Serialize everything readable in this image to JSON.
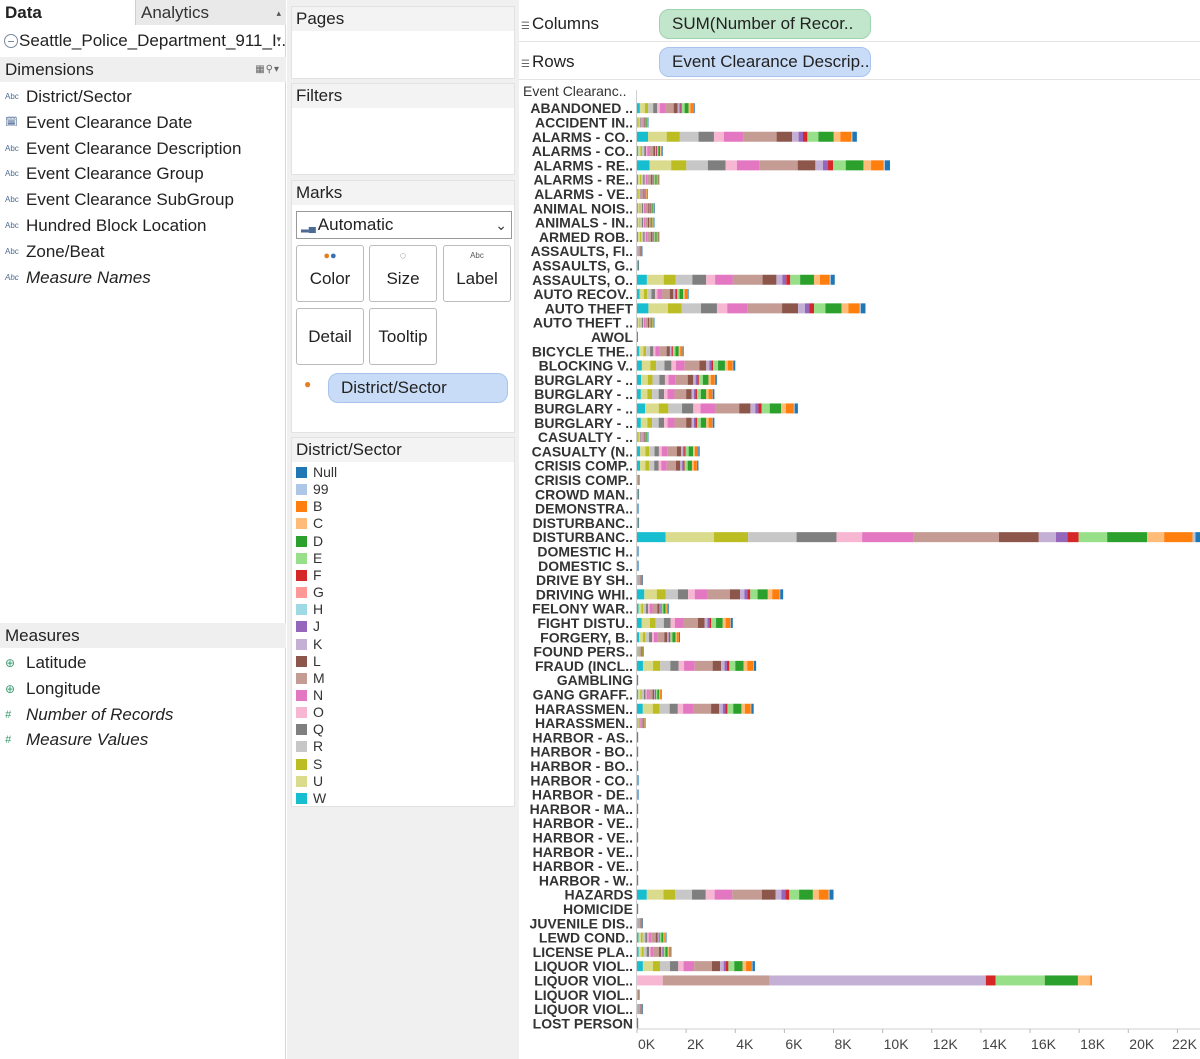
{
  "left_pane": {
    "tabs": {
      "data": "Data",
      "analytics": "Analytics"
    },
    "datasource": "Seattle_Police_Department_911_I...",
    "dimensions_header": "Dimensions",
    "dimensions": [
      {
        "type": "Abc",
        "label": "District/Sector",
        "italic": false
      },
      {
        "type": "date",
        "label": "Event Clearance Date",
        "italic": false
      },
      {
        "type": "Abc",
        "label": "Event Clearance Description",
        "italic": false
      },
      {
        "type": "Abc",
        "label": "Event Clearance Group",
        "italic": false
      },
      {
        "type": "Abc",
        "label": "Event Clearance SubGroup",
        "italic": false
      },
      {
        "type": "Abc",
        "label": "Hundred Block Location",
        "italic": false
      },
      {
        "type": "Abc",
        "label": "Zone/Beat",
        "italic": false
      },
      {
        "type": "Abc",
        "label": "Measure Names",
        "italic": true
      }
    ],
    "measures_header": "Measures",
    "measures": [
      {
        "type": "geo",
        "label": "Latitude",
        "italic": false
      },
      {
        "type": "geo",
        "label": "Longitude",
        "italic": false
      },
      {
        "type": "num",
        "label": "Number of Records",
        "italic": true
      },
      {
        "type": "num",
        "label": "Measure Values",
        "italic": true
      }
    ]
  },
  "cards": {
    "pages": "Pages",
    "filters": "Filters",
    "marks": "Marks",
    "mark_type": "Automatic",
    "buttons": {
      "color": "Color",
      "size": "Size",
      "label": "Label",
      "detail": "Detail",
      "tooltip": "Tooltip"
    },
    "color_pill": "District/Sector",
    "legend_title": "District/Sector",
    "legend": [
      {
        "label": "Null",
        "color": "#1f77b4"
      },
      {
        "label": "99",
        "color": "#aec7e8"
      },
      {
        "label": "B",
        "color": "#ff7f0e"
      },
      {
        "label": "C",
        "color": "#ffbb78"
      },
      {
        "label": "D",
        "color": "#2ca02c"
      },
      {
        "label": "E",
        "color": "#98df8a"
      },
      {
        "label": "F",
        "color": "#d62728"
      },
      {
        "label": "G",
        "color": "#ff9896"
      },
      {
        "label": "H",
        "color": "#9edae5"
      },
      {
        "label": "J",
        "color": "#9467bd"
      },
      {
        "label": "K",
        "color": "#c5b0d5"
      },
      {
        "label": "L",
        "color": "#8c564b"
      },
      {
        "label": "M",
        "color": "#c49c94"
      },
      {
        "label": "N",
        "color": "#e377c2"
      },
      {
        "label": "O",
        "color": "#f7b6d2"
      },
      {
        "label": "Q",
        "color": "#7f7f7f"
      },
      {
        "label": "R",
        "color": "#c7c7c7"
      },
      {
        "label": "S",
        "color": "#bcbd22"
      },
      {
        "label": "U",
        "color": "#dbdb8d"
      },
      {
        "label": "W",
        "color": "#17becf"
      }
    ]
  },
  "shelves": {
    "columns_label": "Columns",
    "columns_pill": "SUM(Number of Recor..",
    "rows_label": "Rows",
    "rows_pill": "Event Clearance Descrip.."
  },
  "chart_data": {
    "type": "bar",
    "orientation": "horizontal",
    "stacked": true,
    "row_header": "Event Clearanc..",
    "xlim": [
      0,
      23000
    ],
    "x_ticks": [
      {
        "v": 0,
        "label": "0K"
      },
      {
        "v": 2000,
        "label": "2K"
      },
      {
        "v": 4000,
        "label": "4K"
      },
      {
        "v": 6000,
        "label": "6K"
      },
      {
        "v": 8000,
        "label": "8K"
      },
      {
        "v": 10000,
        "label": "10K"
      },
      {
        "v": 12000,
        "label": "12K"
      },
      {
        "v": 14000,
        "label": "14K"
      },
      {
        "v": 16000,
        "label": "16K"
      },
      {
        "v": 18000,
        "label": "18K"
      },
      {
        "v": 20000,
        "label": "20K"
      },
      {
        "v": 22000,
        "label": "22K"
      }
    ],
    "categories": [
      "ABANDONED ..",
      "ACCIDENT IN..",
      "ALARMS - CO..",
      "ALARMS - CO..",
      "ALARMS - RE..",
      "ALARMS - RE..",
      "ALARMS - VE..",
      "ANIMAL NOIS..",
      "ANIMALS - IN..",
      "ARMED ROB..",
      "ASSAULTS, FI..",
      "ASSAULTS, G..",
      "ASSAULTS, O..",
      "AUTO RECOV..",
      "AUTO THEFT",
      "AUTO THEFT ..",
      "AWOL",
      "BICYCLE THE..",
      "BLOCKING V..",
      "BURGLARY - ..",
      "BURGLARY - ..",
      "BURGLARY - ..",
      "BURGLARY - ..",
      "CASUALTY - ..",
      "CASUALTY (N..",
      "CRISIS COMP..",
      "CRISIS COMP..",
      "CROWD MAN..",
      "DEMONSTRA..",
      "DISTURBANC..",
      "DISTURBANC..",
      "DOMESTIC H..",
      "DOMESTIC S..",
      "DRIVE BY SH..",
      "DRIVING WHI..",
      "FELONY WAR..",
      "FIGHT DISTU..",
      "FORGERY, B..",
      "FOUND PERS..",
      "FRAUD (INCL..",
      "GAMBLING",
      "GANG GRAFF..",
      "HARASSMEN..",
      "HARASSMEN..",
      "HARBOR - AS..",
      "HARBOR - BO..",
      "HARBOR - BO..",
      "HARBOR - CO..",
      "HARBOR - DE..",
      "HARBOR - MA..",
      "HARBOR - VE..",
      "HARBOR - VE..",
      "HARBOR - VE..",
      "HARBOR - VE..",
      "HARBOR - W..",
      "HAZARDS",
      "HOMICIDE",
      "JUVENILE DIS..",
      "LEWD COND..",
      "LICENSE PLA..",
      "LIQUOR VIOL..",
      "LIQUOR VIOL..",
      "LIQUOR VIOL..",
      "LIQUOR VIOL..",
      "LOST PERSON"
    ],
    "totals": [
      2350,
      450,
      8950,
      1050,
      10300,
      900,
      420,
      720,
      700,
      900,
      200,
      60,
      8050,
      2100,
      9300,
      700,
      10,
      1900,
      4000,
      3250,
      3150,
      6550,
      3150,
      450,
      2550,
      2500,
      80,
      60,
      40,
      60,
      23200,
      40,
      40,
      220,
      5950,
      1300,
      3900,
      1750,
      250,
      4850,
      20,
      1000,
      4750,
      330,
      20,
      20,
      20,
      40,
      40,
      20,
      20,
      20,
      20,
      20,
      20,
      8000,
      20,
      220,
      1200,
      1400,
      4800,
      19700,
      80,
      220,
      20
    ],
    "sector_order": [
      "W",
      "U",
      "S",
      "R",
      "Q",
      "O",
      "N",
      "M",
      "L",
      "K",
      "J",
      "F",
      "E",
      "D",
      "C",
      "B",
      "99",
      "Null"
    ],
    "sector_weights": {
      "W": 0.05,
      "U": 0.085,
      "S": 0.06,
      "R": 0.085,
      "Q": 0.07,
      "O": 0.045,
      "N": 0.09,
      "M": 0.15,
      "L": 0.07,
      "K": 0.03,
      "J": 0.02,
      "F": 0.02,
      "E": 0.05,
      "D": 0.07,
      "C": 0.03,
      "B": 0.05,
      "99": 0.005,
      "Null": 0.02
    },
    "special_breakdowns": {
      "61": {
        "O": 1050,
        "M": 4350,
        "K": 8800,
        "F": 400,
        "E": 2000,
        "D": 1350,
        "C": 500,
        "B": 70
      }
    }
  }
}
